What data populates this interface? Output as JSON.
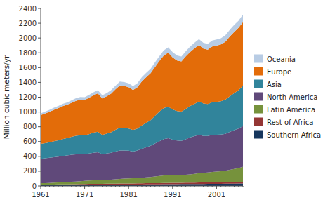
{
  "chart_data": {
    "type": "area",
    "stacked": true,
    "ylabel": "Million cubic meters/yr",
    "x": [
      1961,
      1962,
      1963,
      1964,
      1965,
      1966,
      1967,
      1968,
      1969,
      1970,
      1971,
      1972,
      1973,
      1974,
      1975,
      1976,
      1977,
      1978,
      1979,
      1980,
      1981,
      1982,
      1983,
      1984,
      1985,
      1986,
      1987,
      1988,
      1989,
      1990,
      1991,
      1992,
      1993,
      1994,
      1995,
      1996,
      1997,
      1998,
      1999,
      2000,
      2001,
      2002,
      2003,
      2004,
      2005,
      2006,
      2007
    ],
    "xlim": [
      1961,
      2007
    ],
    "xticks": [
      1961,
      1971,
      1981,
      1991,
      2001
    ],
    "ylim": [
      0,
      2400
    ],
    "yticks": [
      0,
      200,
      400,
      600,
      800,
      1000,
      1200,
      1400,
      1600,
      1800,
      2000,
      2200,
      2400
    ],
    "legend": "right",
    "series": [
      {
        "name": "Southern Africa",
        "color": "#17375E",
        "values": [
          10,
          10,
          10,
          11,
          11,
          12,
          12,
          13,
          13,
          14,
          14,
          15,
          15,
          16,
          16,
          17,
          17,
          18,
          18,
          19,
          19,
          19,
          20,
          20,
          21,
          21,
          22,
          22,
          23,
          23,
          24,
          24,
          25,
          25,
          26,
          26,
          27,
          27,
          28,
          28,
          29,
          29,
          30,
          31,
          32,
          33,
          34
        ]
      },
      {
        "name": "Rest of Africa",
        "color": "#943634",
        "values": [
          8,
          8,
          9,
          9,
          10,
          10,
          10,
          11,
          11,
          12,
          12,
          13,
          13,
          13,
          13,
          14,
          14,
          14,
          15,
          15,
          15,
          15,
          15,
          16,
          16,
          16,
          17,
          17,
          18,
          18,
          18,
          18,
          18,
          19,
          19,
          19,
          20,
          20,
          20,
          21,
          21,
          21,
          22,
          22,
          23,
          23,
          24
        ]
      },
      {
        "name": "Latin America",
        "color": "#76923C",
        "values": [
          20,
          21,
          22,
          24,
          26,
          28,
          30,
          33,
          36,
          39,
          42,
          45,
          48,
          51,
          50,
          52,
          55,
          58,
          62,
          65,
          68,
          70,
          73,
          76,
          80,
          85,
          90,
          96,
          102,
          108,
          110,
          108,
          105,
          108,
          112,
          118,
          125,
          130,
          135,
          140,
          145,
          150,
          155,
          165,
          175,
          185,
          200
        ]
      },
      {
        "name": "North America",
        "color": "#60497A",
        "values": [
          330,
          335,
          340,
          345,
          350,
          355,
          360,
          365,
          368,
          365,
          362,
          365,
          372,
          375,
          350,
          355,
          362,
          375,
          385,
          380,
          375,
          360,
          370,
          390,
          405,
          420,
          445,
          470,
          490,
          495,
          475,
          465,
          462,
          480,
          500,
          510,
          520,
          500,
          492,
          500,
          497,
          495,
          498,
          512,
          525,
          535,
          550
        ]
      },
      {
        "name": "Asia",
        "color": "#31849B",
        "values": [
          200,
          205,
          210,
          215,
          220,
          228,
          235,
          243,
          250,
          255,
          255,
          262,
          272,
          278,
          262,
          268,
          278,
          294,
          308,
          305,
          298,
          292,
          298,
          316,
          332,
          348,
          374,
          400,
          420,
          428,
          408,
          398,
          395,
          410,
          425,
          438,
          452,
          438,
          432,
          442,
          445,
          450,
          462,
          482,
          500,
          520,
          545
        ]
      },
      {
        "name": "Europe",
        "color": "#E36C09",
        "values": [
          390,
          400,
          412,
          425,
          435,
          445,
          450,
          460,
          472,
          482,
          478,
          492,
          507,
          520,
          492,
          505,
          522,
          548,
          572,
          568,
          560,
          542,
          560,
          596,
          617,
          635,
          660,
          685,
          712,
          730,
          704,
          683,
          678,
          710,
          730,
          750,
          762,
          741,
          735,
          754,
          760,
          768,
          782,
          808,
          828,
          842,
          863
        ]
      },
      {
        "name": "Oceania",
        "color": "#B8CCE4",
        "values": [
          25,
          26,
          27,
          28,
          30,
          31,
          32,
          33,
          35,
          36,
          37,
          38,
          40,
          42,
          42,
          44,
          46,
          48,
          50,
          52,
          52,
          52,
          54,
          56,
          58,
          60,
          63,
          66,
          69,
          72,
          70,
          68,
          67,
          70,
          73,
          76,
          80,
          80,
          80,
          82,
          83,
          85,
          87,
          90,
          93,
          96,
          100
        ]
      }
    ]
  }
}
